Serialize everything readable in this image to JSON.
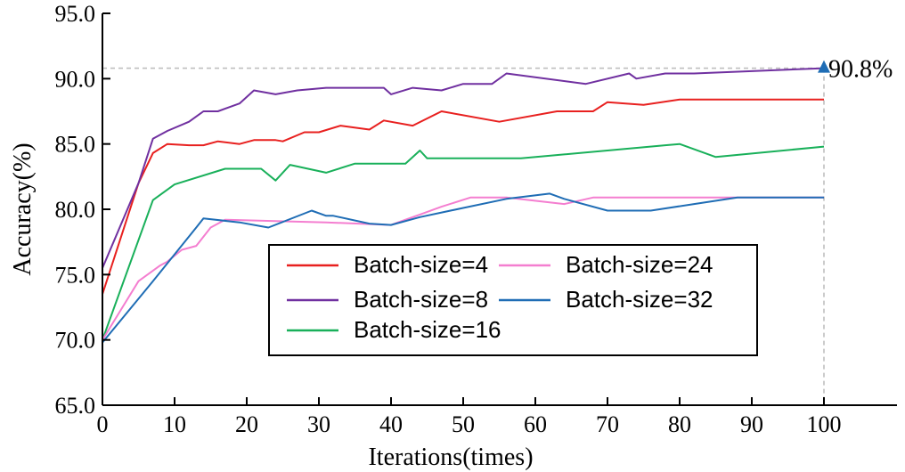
{
  "chart_data": {
    "type": "line",
    "title": "",
    "xlabel": "Iterations(times)",
    "ylabel": "Accuracy(%)",
    "xlim": [
      0,
      100
    ],
    "ylim": [
      65,
      95
    ],
    "xticks": [
      "0",
      "10",
      "20",
      "30",
      "40",
      "50",
      "60",
      "70",
      "80",
      "90",
      "100"
    ],
    "yticks": [
      "65.0",
      "70.0",
      "75.0",
      "80.0",
      "85.0",
      "90.0",
      "95.0"
    ],
    "grid": false,
    "legend_position": "center-right",
    "series": [
      {
        "name": "Batch-size=4",
        "color": "#e8201f",
        "x": [
          0,
          5,
          7,
          9,
          12,
          14,
          16,
          19,
          21,
          24,
          25,
          28,
          30,
          33,
          37,
          39,
          43,
          47,
          55,
          63,
          68,
          70,
          75,
          80,
          85,
          100
        ],
        "y": [
          73.5,
          82,
          84.3,
          85.0,
          84.9,
          84.9,
          85.2,
          85.0,
          85.3,
          85.3,
          85.2,
          85.9,
          85.9,
          86.4,
          86.1,
          86.8,
          86.4,
          87.5,
          86.7,
          87.5,
          87.5,
          88.2,
          88.0,
          88.4,
          88.4,
          88.4
        ]
      },
      {
        "name": "Batch-size=8",
        "color": "#7030a0",
        "x": [
          0,
          5,
          7,
          9,
          12,
          14,
          16,
          19,
          21,
          24,
          27,
          31,
          35,
          39,
          40,
          43,
          47,
          50,
          54,
          56,
          67,
          73,
          74,
          78,
          82,
          100
        ],
        "y": [
          75.5,
          82,
          85.4,
          86.0,
          86.7,
          87.5,
          87.5,
          88.1,
          89.1,
          88.8,
          89.1,
          89.3,
          89.3,
          89.3,
          88.8,
          89.3,
          89.1,
          89.6,
          89.6,
          90.4,
          89.6,
          90.4,
          90.0,
          90.4,
          90.4,
          90.8
        ]
      },
      {
        "name": "Batch-size=16",
        "color": "#19b05a",
        "x": [
          0,
          7,
          10,
          17,
          21,
          22,
          24,
          26,
          31,
          35,
          38,
          42,
          44,
          45,
          52,
          58,
          78,
          80,
          85,
          100
        ],
        "y": [
          70.0,
          80.7,
          81.9,
          83.1,
          83.1,
          83.1,
          82.2,
          83.4,
          82.8,
          83.5,
          83.5,
          83.5,
          84.5,
          83.9,
          83.9,
          83.9,
          84.9,
          85.0,
          84.0,
          84.8
        ]
      },
      {
        "name": "Batch-size=24",
        "color": "#f47ed0",
        "x": [
          0,
          5,
          8,
          9,
          11,
          13,
          15,
          17,
          24,
          31,
          40,
          42,
          44,
          47,
          51,
          56,
          64,
          68,
          72,
          75,
          80,
          87,
          90,
          100
        ],
        "y": [
          70.0,
          74.5,
          75.7,
          76.0,
          76.9,
          77.2,
          78.6,
          79.2,
          79.1,
          79.0,
          78.8,
          79.2,
          79.6,
          80.2,
          80.9,
          80.9,
          80.4,
          80.9,
          80.9,
          80.9,
          80.9,
          80.9,
          80.9,
          80.9
        ]
      },
      {
        "name": "Batch-size=32",
        "color": "#1f6db5",
        "x": [
          0,
          7,
          13,
          14,
          19,
          23,
          29,
          31,
          32,
          37,
          40,
          44,
          50,
          56,
          62,
          64,
          70,
          76,
          82,
          88,
          100
        ],
        "y": [
          69.8,
          74.5,
          78.6,
          79.3,
          79.0,
          78.6,
          79.9,
          79.5,
          79.5,
          78.9,
          78.8,
          79.4,
          80.1,
          80.8,
          81.2,
          80.8,
          79.9,
          79.9,
          80.4,
          80.9,
          80.9
        ]
      }
    ],
    "annotations": [
      {
        "text": "90.8%",
        "x": 100,
        "y": 90.8,
        "marker": "triangle",
        "marker_color": "#1f6db5",
        "guide_color": "#bfbfbf"
      }
    ]
  }
}
